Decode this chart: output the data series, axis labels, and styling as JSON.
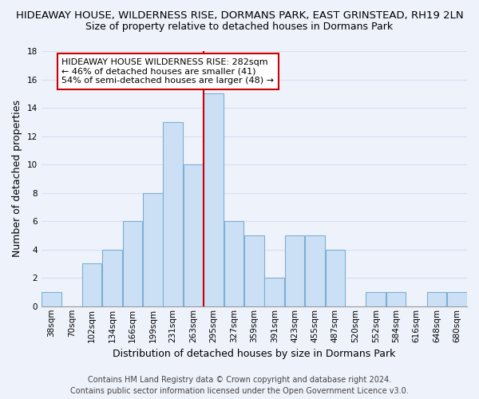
{
  "title": "HIDEAWAY HOUSE, WILDERNESS RISE, DORMANS PARK, EAST GRINSTEAD, RH19 2LN",
  "subtitle": "Size of property relative to detached houses in Dormans Park",
  "xlabel": "Distribution of detached houses by size in Dormans Park",
  "ylabel": "Number of detached properties",
  "bin_labels": [
    "38sqm",
    "70sqm",
    "102sqm",
    "134sqm",
    "166sqm",
    "199sqm",
    "231sqm",
    "263sqm",
    "295sqm",
    "327sqm",
    "359sqm",
    "391sqm",
    "423sqm",
    "455sqm",
    "487sqm",
    "520sqm",
    "552sqm",
    "584sqm",
    "616sqm",
    "648sqm",
    "680sqm"
  ],
  "bar_heights": [
    1,
    0,
    3,
    4,
    6,
    8,
    13,
    10,
    15,
    6,
    5,
    2,
    5,
    5,
    4,
    0,
    1,
    1,
    0,
    1,
    1
  ],
  "bar_color": "#cce0f5",
  "bar_edge_color": "#7bafd4",
  "vline_color": "#cc0000",
  "annotation_title": "HIDEAWAY HOUSE WILDERNESS RISE: 282sqm",
  "annotation_line1": "← 46% of detached houses are smaller (41)",
  "annotation_line2": "54% of semi-detached houses are larger (48) →",
  "annotation_box_color": "#ffffff",
  "annotation_box_edge_color": "#cc0000",
  "ylim": [
    0,
    18
  ],
  "yticks": [
    0,
    2,
    4,
    6,
    8,
    10,
    12,
    14,
    16,
    18
  ],
  "footer_line1": "Contains HM Land Registry data © Crown copyright and database right 2024.",
  "footer_line2": "Contains public sector information licensed under the Open Government Licence v3.0.",
  "bg_color": "#eef2fb",
  "grid_color": "#d8dff0",
  "title_fontsize": 9.5,
  "subtitle_fontsize": 9,
  "axis_label_fontsize": 9,
  "tick_fontsize": 7.5,
  "footer_fontsize": 7,
  "annotation_fontsize": 8
}
